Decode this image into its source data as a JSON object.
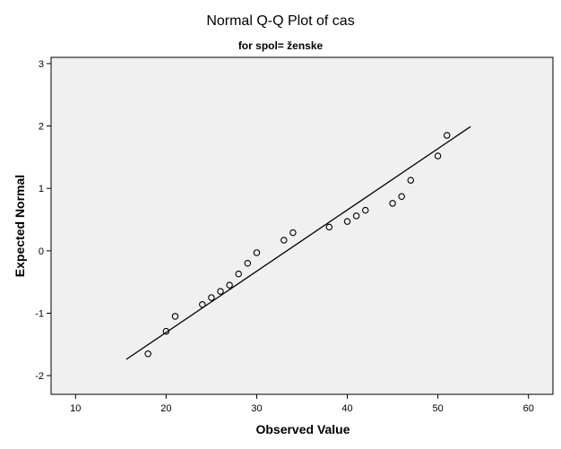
{
  "chart_data": {
    "type": "scatter",
    "title": "Normal Q-Q Plot of cas",
    "subtitle": "for spol= ženske",
    "xlabel": "Observed Value",
    "ylabel": "Expected Normal",
    "xlim": [
      7.3,
      62.7
    ],
    "ylim": [
      -2.3,
      3.1
    ],
    "x_ticks": [
      10,
      20,
      30,
      40,
      50,
      60
    ],
    "y_ticks": [
      -2,
      -1,
      0,
      1,
      2,
      3
    ],
    "grid": false,
    "plot_background": "#f0f0f0",
    "marker": "open-circle",
    "colors": {
      "points": "#000000",
      "line": "#000000",
      "axes": "#000000"
    },
    "points": [
      {
        "x": 18,
        "y": -1.65
      },
      {
        "x": 20,
        "y": -1.29
      },
      {
        "x": 21,
        "y": -1.05
      },
      {
        "x": 24,
        "y": -0.86
      },
      {
        "x": 25,
        "y": -0.75
      },
      {
        "x": 26,
        "y": -0.65
      },
      {
        "x": 27,
        "y": -0.55
      },
      {
        "x": 28,
        "y": -0.37
      },
      {
        "x": 29,
        "y": -0.2
      },
      {
        "x": 30,
        "y": -0.03
      },
      {
        "x": 33,
        "y": 0.17
      },
      {
        "x": 34,
        "y": 0.29
      },
      {
        "x": 38,
        "y": 0.38
      },
      {
        "x": 40,
        "y": 0.47
      },
      {
        "x": 41,
        "y": 0.56
      },
      {
        "x": 42,
        "y": 0.65
      },
      {
        "x": 45,
        "y": 0.76
      },
      {
        "x": 46,
        "y": 0.87
      },
      {
        "x": 47,
        "y": 1.13
      },
      {
        "x": 50,
        "y": 1.52
      },
      {
        "x": 51,
        "y": 1.85
      }
    ],
    "reference_line": {
      "x1": 15.6,
      "y1": -1.74,
      "x2": 53.6,
      "y2": 1.99
    }
  }
}
